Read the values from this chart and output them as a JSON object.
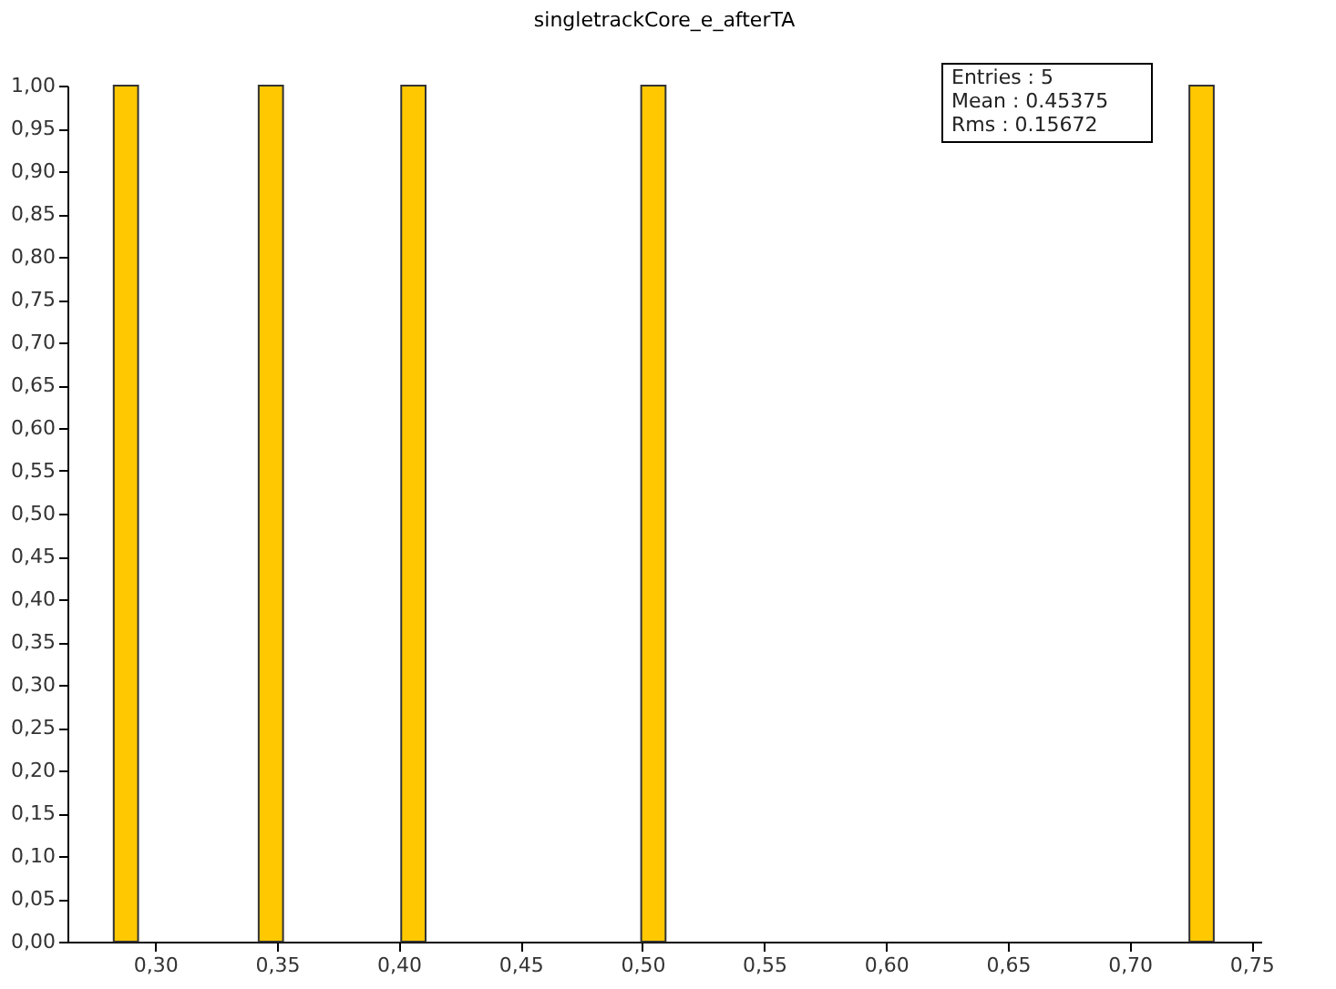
{
  "chart_data": {
    "type": "histogram",
    "title": "singletrackCore_e_afterTA",
    "bins": [
      0.283,
      0.293,
      0.3425,
      0.3525,
      0.401,
      0.411,
      0.4995,
      0.5095,
      0.7245,
      0.7345
    ],
    "values": [
      1,
      0,
      1,
      0,
      1,
      0,
      1,
      0,
      1
    ],
    "color": "#ffc800",
    "xlim": [
      0.264,
      0.754
    ],
    "xticks": [
      {
        "value": 0.3,
        "label": "0,30"
      },
      {
        "value": 0.35,
        "label": "0,35"
      },
      {
        "value": 0.4,
        "label": "0,40"
      },
      {
        "value": 0.45,
        "label": "0,45"
      },
      {
        "value": 0.5,
        "label": "0,50"
      },
      {
        "value": 0.55,
        "label": "0,55"
      },
      {
        "value": 0.6,
        "label": "0,60"
      },
      {
        "value": 0.65,
        "label": "0,65"
      },
      {
        "value": 0.7,
        "label": "0,70"
      },
      {
        "value": 0.75,
        "label": "0,75"
      }
    ],
    "ylim": [
      0,
      1.0
    ],
    "yticks": [
      {
        "value": 0,
        "label": "0,00"
      },
      {
        "value": 0.05,
        "label": "0,05"
      },
      {
        "value": 0.1,
        "label": "0,10"
      },
      {
        "value": 0.15,
        "label": "0,15"
      },
      {
        "value": 0.2,
        "label": "0,20"
      },
      {
        "value": 0.25,
        "label": "0,25"
      },
      {
        "value": 0.3,
        "label": "0,30"
      },
      {
        "value": 0.35,
        "label": "0,35"
      },
      {
        "value": 0.4,
        "label": "0,40"
      },
      {
        "value": 0.45,
        "label": "0,45"
      },
      {
        "value": 0.5,
        "label": "0,50"
      },
      {
        "value": 0.55,
        "label": "0,55"
      },
      {
        "value": 0.6,
        "label": "0,60"
      },
      {
        "value": 0.65,
        "label": "0,65"
      },
      {
        "value": 0.7,
        "label": "0,70"
      },
      {
        "value": 0.75,
        "label": "0,75"
      },
      {
        "value": 0.8,
        "label": "0,80"
      },
      {
        "value": 0.85,
        "label": "0,85"
      },
      {
        "value": 0.9,
        "label": "0,90"
      },
      {
        "value": 0.95,
        "label": "0,95"
      },
      {
        "value": 1.0,
        "label": "1,00"
      }
    ],
    "grid": false,
    "annotations": [
      "Entries :        5",
      "Mean : 0.45375",
      "Rms :   0.15672"
    ]
  }
}
